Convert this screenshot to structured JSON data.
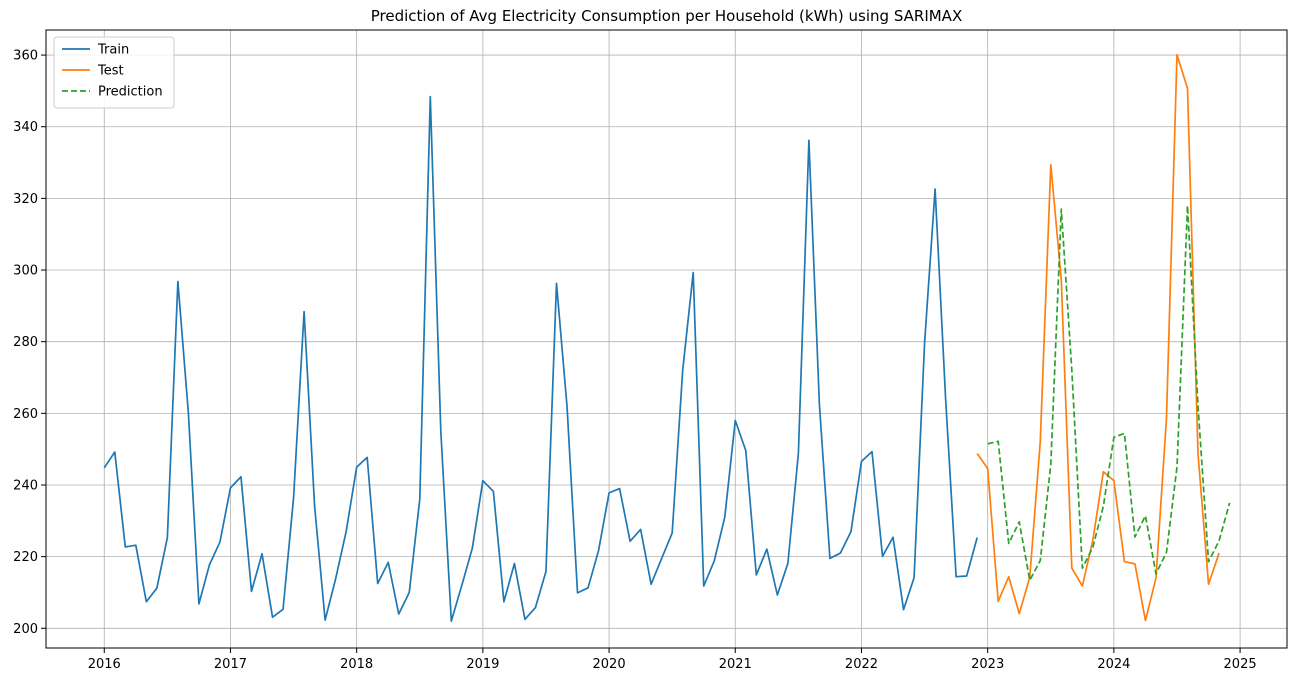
{
  "chart_data": {
    "type": "line",
    "title": "Prediction of Avg Electricity Consumption per Household (kWh) using SARIMAX",
    "xlabel": "",
    "ylabel": "",
    "x_ticks": [
      "2016",
      "2017",
      "2018",
      "2019",
      "2020",
      "2021",
      "2022",
      "2023",
      "2024",
      "2025"
    ],
    "y_ticks": [
      200,
      220,
      240,
      260,
      280,
      300,
      320,
      340,
      360
    ],
    "xlim": [
      "2015-07-15",
      "2025-05-15"
    ],
    "ylim": [
      194.5,
      367
    ],
    "grid": true,
    "legend_position": "top-left",
    "series": [
      {
        "name": "Train",
        "color": "#1f77b4",
        "style": "solid",
        "start": "2016-01",
        "values": [
          244.8,
          249.2,
          222.7,
          223.2,
          207.4,
          211.2,
          225.3,
          296.8,
          260.0,
          206.8,
          217.7,
          224.1,
          239.2,
          242.3,
          210.3,
          220.8,
          203.1,
          205.3,
          236.4,
          288.4,
          234.1,
          202.3,
          213.8,
          227.0,
          245.0,
          247.7,
          212.5,
          218.4,
          204.0,
          210.0,
          236.0,
          348.4,
          255.0,
          202.0,
          212.0,
          222.4,
          241.2,
          238.2,
          207.4,
          218.1,
          202.5,
          205.8,
          215.9,
          296.3,
          262.0,
          209.9,
          211.3,
          221.7,
          237.8,
          239.0,
          224.3,
          227.6,
          212.3,
          219.5,
          226.6,
          272.0,
          299.3,
          211.8,
          218.8,
          231.0,
          258.0,
          249.6,
          214.9,
          222.1,
          209.3,
          218.1,
          248.8,
          336.2,
          262.4,
          219.5,
          221.0,
          227.0,
          246.6,
          249.3,
          220.1,
          225.4,
          205.2,
          214.1,
          279.6,
          322.6,
          264.0,
          214.4,
          214.6,
          225.3
        ]
      },
      {
        "name": "Test",
        "color": "#ff7f0e",
        "style": "solid",
        "start": "2022-12",
        "values": [
          248.8,
          244.6,
          207.5,
          214.4,
          204.1,
          214.2,
          252.1,
          329.4,
          297.2,
          216.8,
          211.8,
          224.6,
          243.7,
          241.2,
          218.6,
          218.0,
          202.2,
          214.0,
          258.6,
          360.1,
          350.7,
          248.7,
          212.3,
          221.0
        ]
      },
      {
        "name": "Prediction",
        "color": "#2ca02c",
        "style": "dashed",
        "start": "2023-01",
        "values": [
          251.5,
          252.2,
          223.7,
          229.7,
          213.4,
          218.9,
          245.7,
          317.0,
          272.0,
          216.8,
          222.6,
          234.1,
          253.3,
          254.4,
          225.5,
          231.4,
          215.2,
          221.2,
          245.0,
          318.0,
          262.0,
          218.6,
          224.4,
          235.0
        ]
      }
    ]
  }
}
